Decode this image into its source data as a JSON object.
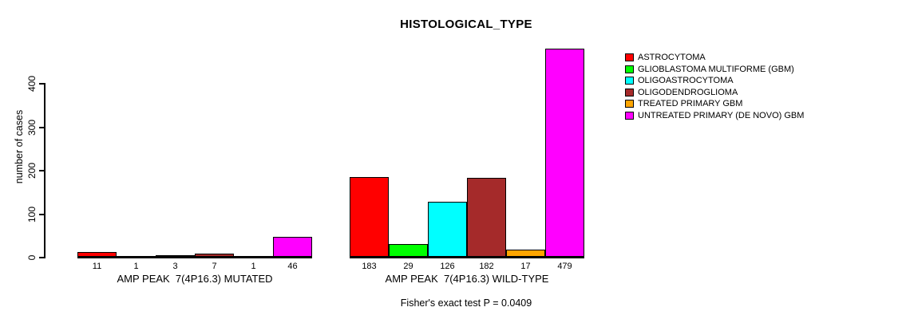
{
  "chart_data": {
    "type": "bar",
    "title": "HISTOLOGICAL_TYPE",
    "ylabel": "number of cases",
    "xlabel": "",
    "ylim": [
      0,
      400
    ],
    "yticks": [
      0,
      100,
      200,
      300,
      400
    ],
    "ytick_labels": [
      "0",
      "100",
      "200",
      "300",
      "400"
    ],
    "grid": false,
    "legend_position": "top-right",
    "categories": [
      "AMP PEAK  7(4P16.3) MUTATED",
      "AMP PEAK  7(4P16.3) WILD-TYPE"
    ],
    "series": [
      {
        "name": "ASTROCYTOMA",
        "color": "#FF0000",
        "values": [
          11,
          183
        ]
      },
      {
        "name": "GLIOBLASTOMA MULTIFORME (GBM)",
        "color": "#00FF00",
        "values": [
          1,
          29
        ]
      },
      {
        "name": "OLIGOASTROCYTOMA",
        "color": "#00FFFF",
        "values": [
          3,
          126
        ]
      },
      {
        "name": "OLIGODENDROGLIOMA",
        "color": "#A52A2A",
        "values": [
          7,
          182
        ]
      },
      {
        "name": "TREATED PRIMARY GBM",
        "color": "#FFA500",
        "values": [
          1,
          17
        ]
      },
      {
        "name": "UNTREATED PRIMARY (DE NOVO) GBM",
        "color": "#FF00FF",
        "values": [
          46,
          479
        ]
      }
    ],
    "bar_value_labels_shown": true,
    "annotations": [
      "Fisher's exact test P = 0.0409"
    ],
    "colors": {
      "background": "#FFFFFF",
      "axis": "#000000",
      "text": "#000000"
    }
  }
}
